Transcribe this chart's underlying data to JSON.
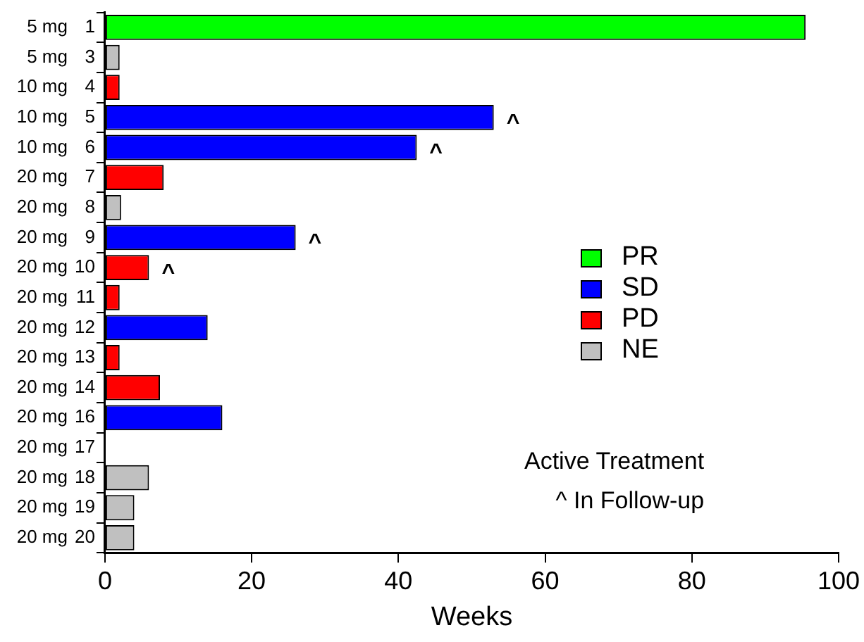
{
  "chart_data": {
    "type": "bar",
    "orientation": "horizontal",
    "stacked": true,
    "xlabel": "Weeks",
    "categories": [
      "1",
      "3",
      "4",
      "5",
      "6",
      "7",
      "8",
      "9",
      "10",
      "11",
      "12",
      "13",
      "14",
      "16",
      "17",
      "18",
      "19",
      "20"
    ],
    "series": [
      {
        "name": "PR",
        "color": "#00ff00",
        "values": [
          95.5,
          null,
          null,
          null,
          null,
          null,
          null,
          null,
          null,
          null,
          null,
          null,
          null,
          null,
          null,
          null,
          null,
          null
        ]
      },
      {
        "name": "SD",
        "color": "#0000ff",
        "values": [
          null,
          null,
          null,
          53,
          42.5,
          null,
          null,
          26,
          null,
          null,
          14,
          null,
          null,
          16,
          null,
          null,
          null,
          null
        ]
      },
      {
        "name": "PD",
        "color": "#ff0000",
        "values": [
          null,
          null,
          2,
          null,
          null,
          8,
          null,
          null,
          6,
          2,
          null,
          2,
          7.5,
          null,
          null,
          null,
          null,
          null
        ]
      },
      {
        "name": "NE",
        "color": "#c0c0c0",
        "values": [
          null,
          2,
          null,
          null,
          null,
          null,
          2.2,
          null,
          null,
          null,
          null,
          null,
          null,
          null,
          null,
          6,
          4,
          4
        ]
      }
    ],
    "xlim": [
      0,
      100
    ],
    "xticks": [
      0,
      20,
      40,
      60,
      80,
      100
    ],
    "legend": "right",
    "grid": false,
    "annotations": [
      "5 mg",
      "5 mg",
      "10 mg",
      "10 mg",
      "10 mg",
      "20 mg",
      "20 mg",
      "20 mg",
      "20 mg",
      "20 mg",
      "20 mg",
      "20 mg",
      "20 mg",
      "20 mg",
      "20 mg",
      "20 mg",
      "20 mg",
      "20 mg",
      {
        "text": "^",
        "x": 53,
        "y": "5"
      },
      {
        "text": "^",
        "x": 42.5,
        "y": "6"
      },
      {
        "text": "^",
        "x": 26,
        "y": "9"
      },
      {
        "text": "^",
        "x": 6,
        "y": "10"
      },
      "Active Treatment",
      "^  In Follow-up"
    ]
  }
}
